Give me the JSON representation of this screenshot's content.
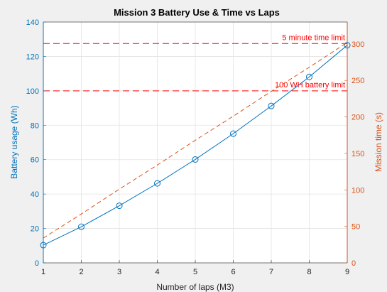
{
  "chart_data": {
    "type": "line",
    "title": "Mission 3 Battery Use & Time vs Laps",
    "xlabel": "Number of laps (M3)",
    "x": [
      1,
      2,
      3,
      4,
      5,
      6,
      7,
      8,
      9
    ],
    "xlim": [
      1,
      9
    ],
    "grid": true,
    "left_axis": {
      "label": "Battery usage (Wh)",
      "ylim": [
        0,
        140
      ],
      "ticks": [
        "0",
        "20",
        "40",
        "60",
        "80",
        "100",
        "120",
        "140"
      ],
      "color": "#0072bd"
    },
    "right_axis": {
      "label": "Mission time (s)",
      "ylim": [
        0,
        330
      ],
      "ticks": [
        "0",
        "50",
        "100",
        "150",
        "200",
        "250",
        "300"
      ],
      "color": "#d95319"
    },
    "series": [
      {
        "axis": "left",
        "style": "solid line with circle markers",
        "color": "#0072bd",
        "values": [
          10.3,
          21,
          33.2,
          46.2,
          60.1,
          75.1,
          91.2,
          108.1,
          126.5
        ]
      },
      {
        "axis": "right",
        "style": "dashed line",
        "color": "#d95319",
        "values": [
          34,
          67,
          101,
          134,
          168,
          201,
          235,
          268,
          302
        ]
      }
    ],
    "reference_lines": [
      {
        "label": "5 minute time limit",
        "axis": "left",
        "value": 127.5,
        "color": "#ff0000"
      },
      {
        "label": "100 WH battery limit",
        "axis": "left",
        "value": 100,
        "color": "#ff0000"
      }
    ],
    "x_ticks": [
      "1",
      "2",
      "3",
      "4",
      "5",
      "6",
      "7",
      "8",
      "9"
    ]
  }
}
